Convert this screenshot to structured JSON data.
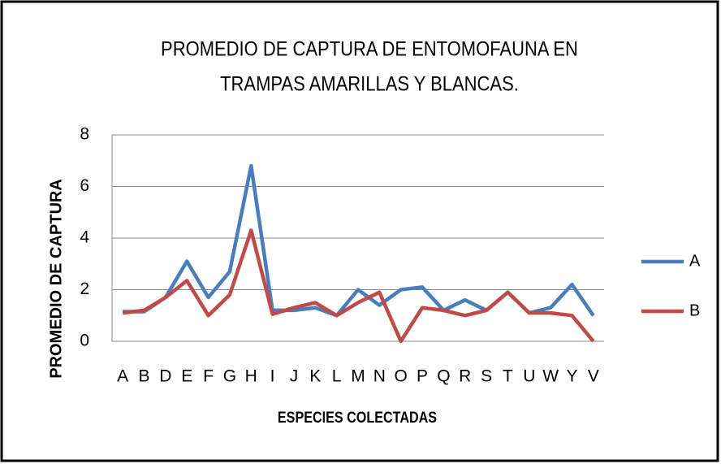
{
  "chart_data": {
    "type": "line",
    "title": [
      "PROMEDIO DE CAPTURA DE ENTOMOFAUNA EN",
      "TRAMPAS AMARILLAS Y BLANCAS."
    ],
    "x_label": "ESPECIES COLECTADAS",
    "y_label": "PROMEDIO DE CAPTURA",
    "categories": [
      "A",
      "B",
      "D",
      "E",
      "F",
      "G",
      "H",
      "I",
      "J",
      "K",
      "L",
      "M",
      "N",
      "O",
      "P",
      "Q",
      "R",
      "S",
      "T",
      "U",
      "W",
      "Y",
      "V"
    ],
    "series": [
      {
        "name": "A",
        "color": "#4a7ebb",
        "values": [
          1.15,
          1.15,
          1.7,
          3.1,
          1.7,
          2.7,
          6.8,
          1.2,
          1.2,
          1.3,
          1.0,
          2.0,
          1.4,
          2.0,
          2.1,
          1.2,
          1.6,
          1.2,
          1.9,
          1.1,
          1.3,
          2.2,
          1.0
        ]
      },
      {
        "name": "B",
        "color": "#be4b48",
        "values": [
          1.1,
          1.2,
          1.7,
          2.35,
          1.0,
          1.8,
          4.3,
          1.05,
          1.3,
          1.5,
          1.0,
          1.5,
          1.9,
          0,
          1.3,
          1.2,
          1.0,
          1.2,
          1.9,
          1.1,
          1.1,
          1.0,
          0
        ]
      }
    ],
    "ylim": [
      0,
      8
    ],
    "yticks": [
      0,
      2,
      4,
      6,
      8
    ],
    "grid": true,
    "legend": "right"
  }
}
